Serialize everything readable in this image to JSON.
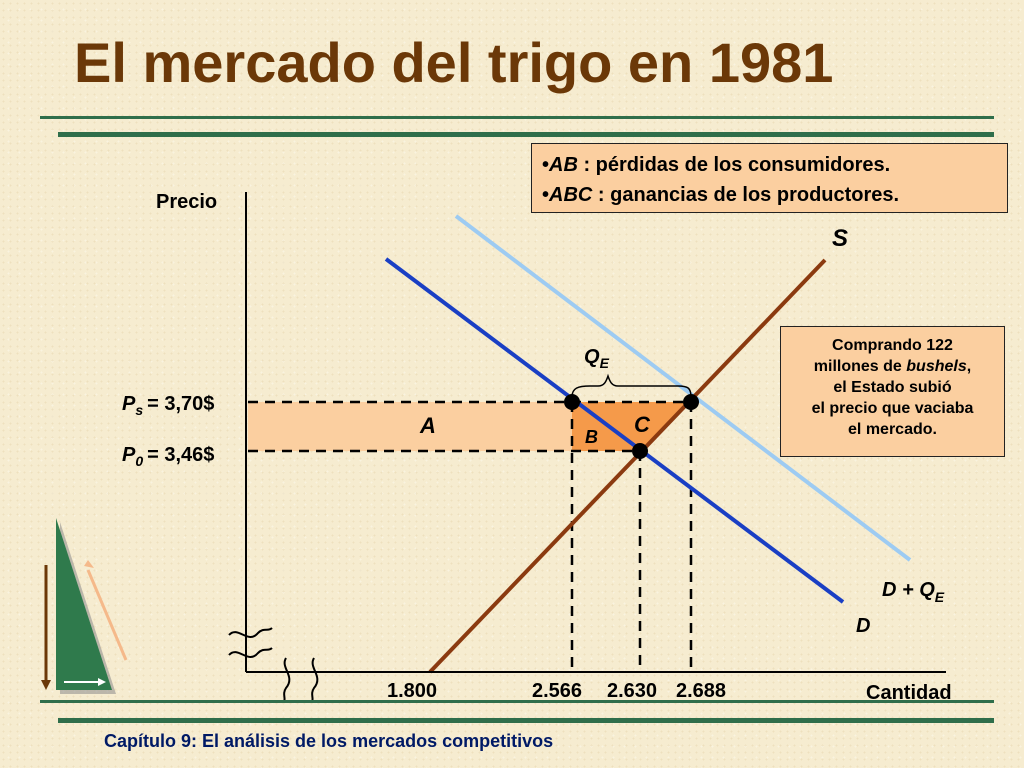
{
  "title": "El mercado del trigo en 1981",
  "footer": "Capítulo 9: El análisis de los mercados competitivos",
  "legend": {
    "ab_label": "AB",
    "ab_text": " : pérdidas de los consumidores.",
    "abc_label": "ABC",
    "abc_text": " : ganancias de los productores."
  },
  "note": {
    "line1": "Comprando 122",
    "line2_prefix": "millones de ",
    "line2_italic": "bushels",
    "line2_suffix": ",",
    "line3": "el Estado subió",
    "line4": "el precio que vaciaba",
    "line5": "el mercado."
  },
  "colors": {
    "demand": "#1a3fc4",
    "demand_shifted": "#9dcbf2",
    "supply": "#8b3a10",
    "area_a": "#fbcfa0",
    "area_c": "#f59a4a",
    "rules": "#2f6e4b",
    "title": "#6b3808"
  },
  "chart_data": {
    "type": "line",
    "xlabel": "Cantidad",
    "ylabel": "Precio",
    "x_ticks": [
      "1.800",
      "2.566",
      "2.630",
      "2.688"
    ],
    "x_tick_values": [
      1800,
      2566,
      2630,
      2688
    ],
    "price_labels": {
      "ps_var": "P",
      "ps_sub": "s",
      "ps_value": "= 3,70$",
      "p0_var": "P",
      "p0_sub": "0",
      "p0_value": "= 3,46$"
    },
    "prices": {
      "ps": 3.7,
      "p0": 3.46
    },
    "series": [
      {
        "name": "S",
        "curve": "supply"
      },
      {
        "name": "D",
        "curve": "demand"
      },
      {
        "name": "D + Q",
        "name_sub": "E",
        "curve": "demand_shifted"
      }
    ],
    "annotations": {
      "qe_label": "Q",
      "qe_sub": "E",
      "area_a": "A",
      "area_b": "B",
      "area_c": "C"
    }
  }
}
